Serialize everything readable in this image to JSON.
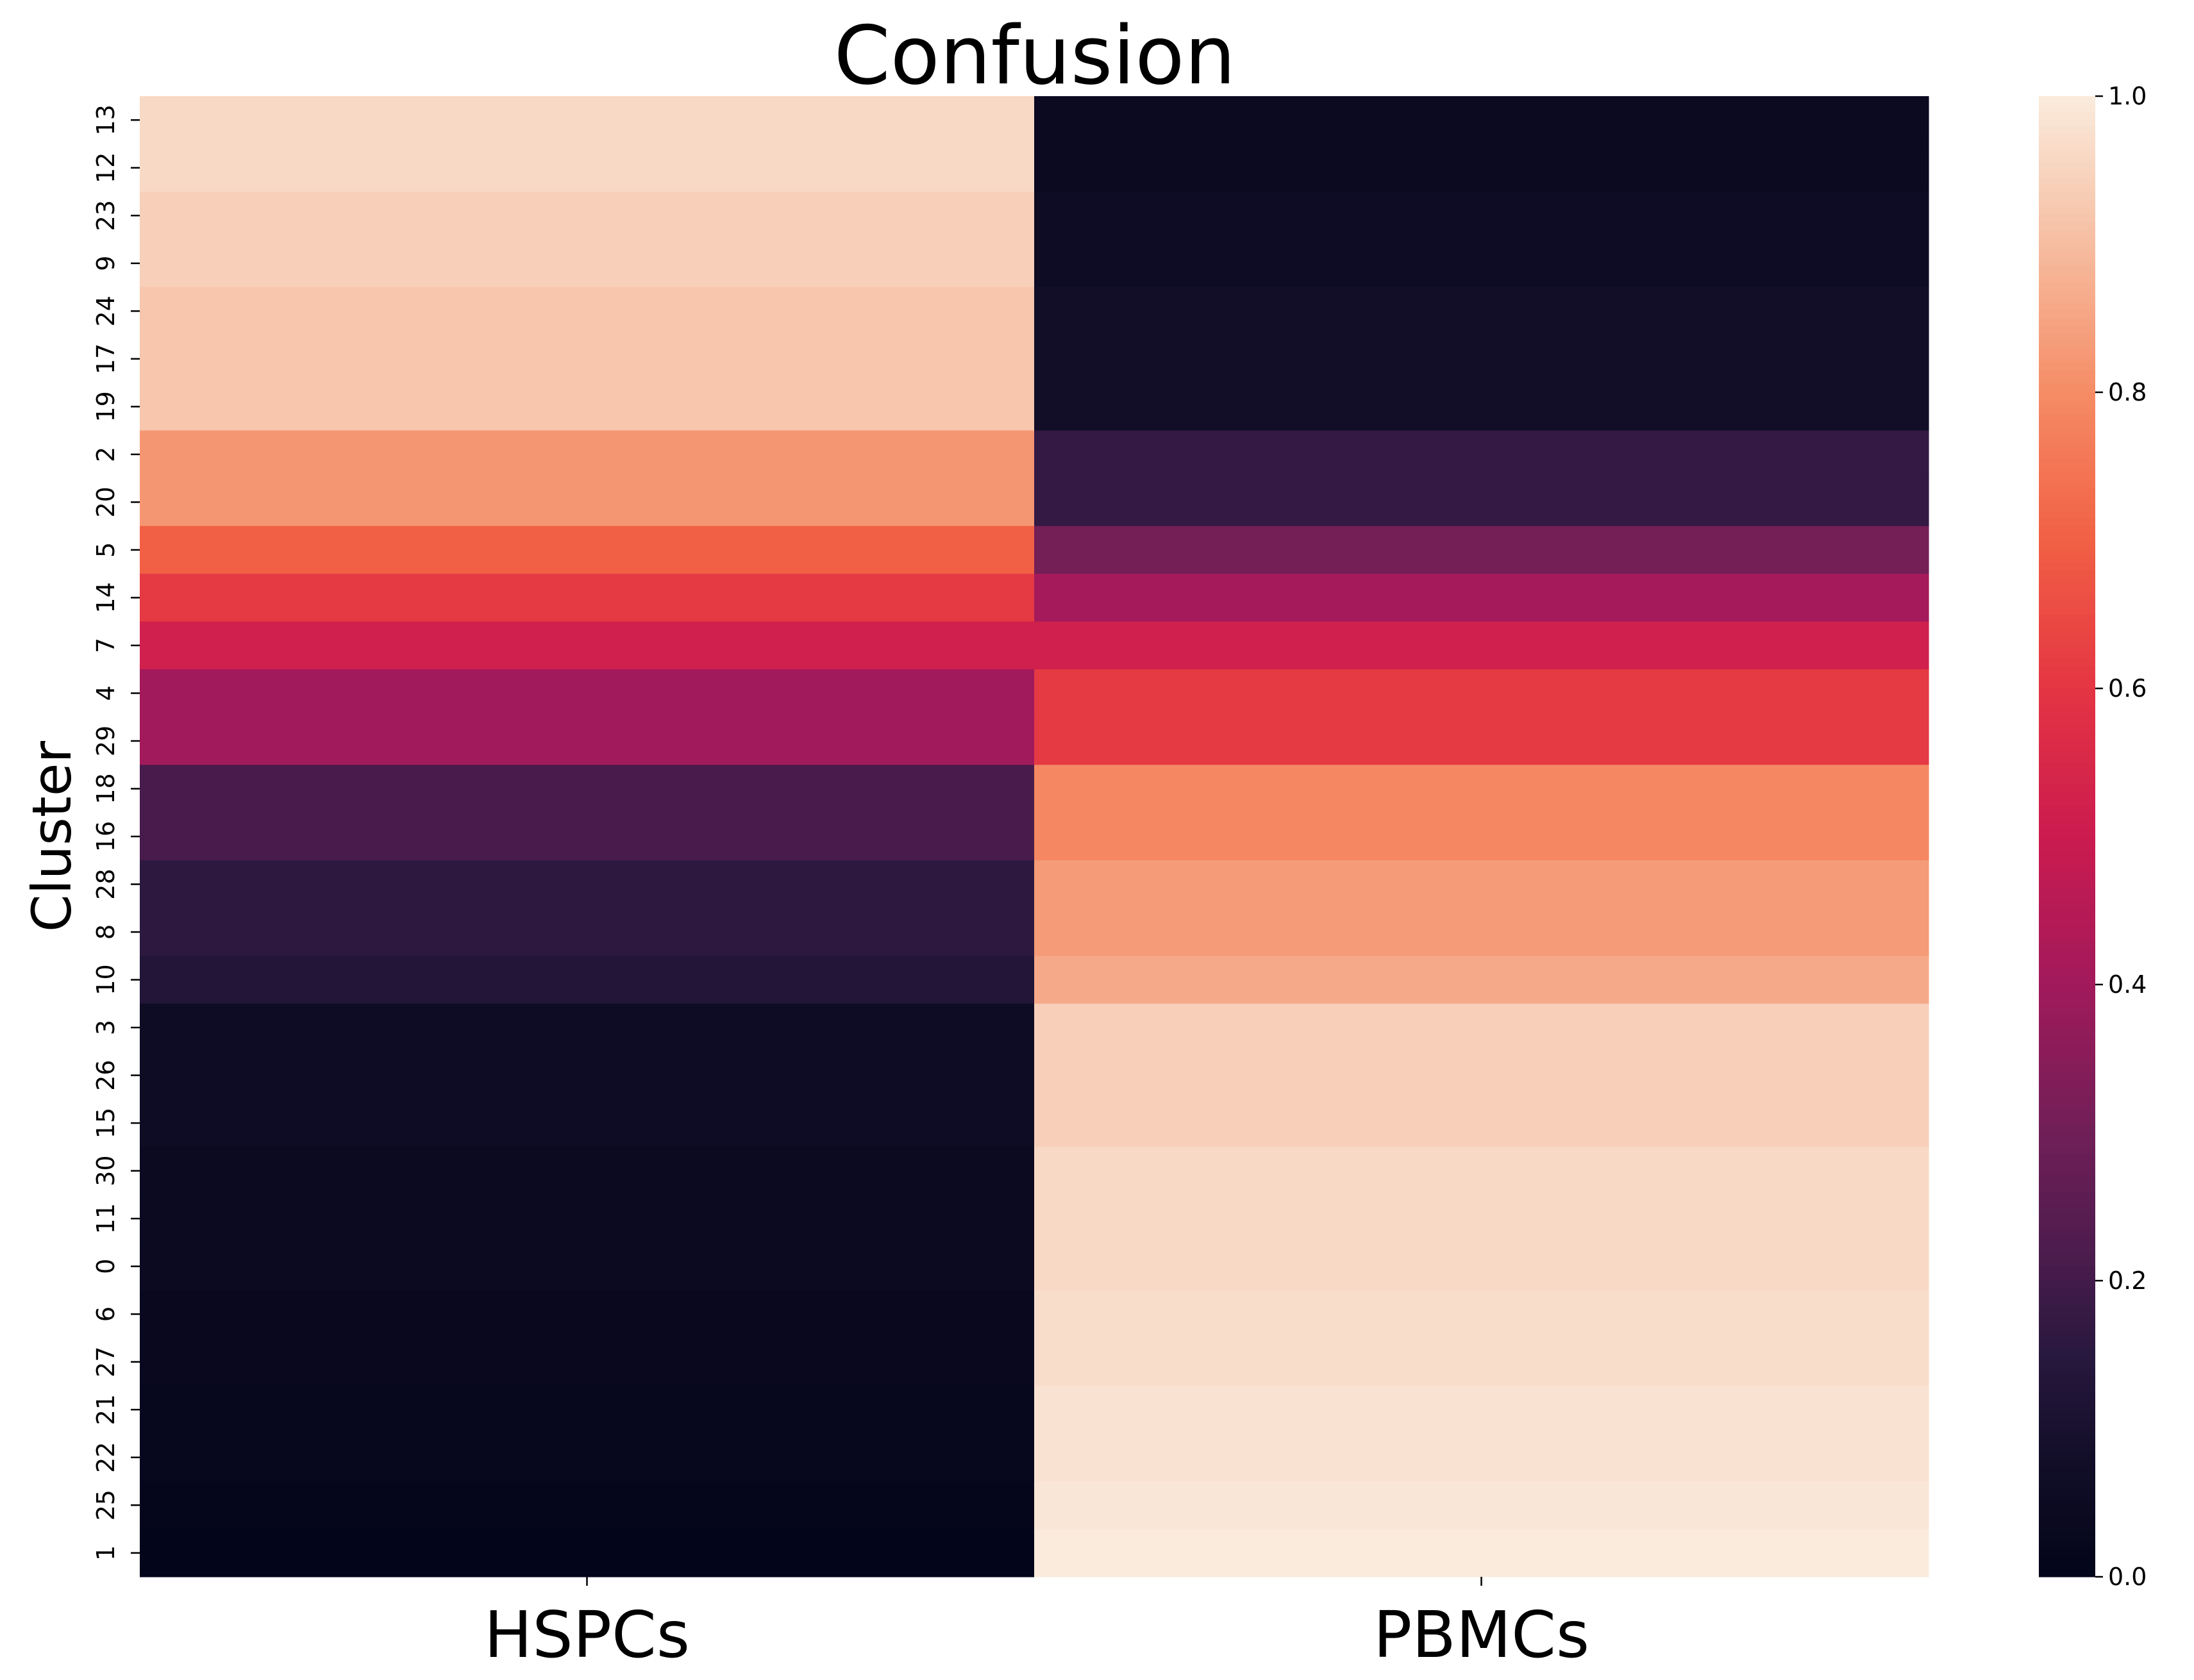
{
  "chart_data": {
    "type": "heatmap",
    "title": "Confusion",
    "xlabel": "",
    "ylabel": "Cluster",
    "columns": [
      "HSPCs",
      "PBMCs"
    ],
    "rows": [
      {
        "cluster": "13",
        "values": [
          0.96,
          0.04
        ]
      },
      {
        "cluster": "12",
        "values": [
          0.96,
          0.04
        ]
      },
      {
        "cluster": "23",
        "values": [
          0.94,
          0.06
        ]
      },
      {
        "cluster": "9",
        "values": [
          0.94,
          0.06
        ]
      },
      {
        "cluster": "24",
        "values": [
          0.92,
          0.08
        ]
      },
      {
        "cluster": "17",
        "values": [
          0.92,
          0.08
        ]
      },
      {
        "cluster": "19",
        "values": [
          0.92,
          0.08
        ]
      },
      {
        "cluster": "2",
        "values": [
          0.82,
          0.17
        ]
      },
      {
        "cluster": "20",
        "values": [
          0.82,
          0.17
        ]
      },
      {
        "cluster": "5",
        "values": [
          0.7,
          0.31
        ]
      },
      {
        "cluster": "14",
        "values": [
          0.61,
          0.41
        ]
      },
      {
        "cluster": "7",
        "values": [
          0.52,
          0.52
        ]
      },
      {
        "cluster": "4",
        "values": [
          0.4,
          0.61
        ]
      },
      {
        "cluster": "29",
        "values": [
          0.4,
          0.61
        ]
      },
      {
        "cluster": "18",
        "values": [
          0.21,
          0.79
        ]
      },
      {
        "cluster": "16",
        "values": [
          0.21,
          0.79
        ]
      },
      {
        "cluster": "28",
        "values": [
          0.16,
          0.83
        ]
      },
      {
        "cluster": "8",
        "values": [
          0.16,
          0.83
        ]
      },
      {
        "cluster": "10",
        "values": [
          0.13,
          0.86
        ]
      },
      {
        "cluster": "3",
        "values": [
          0.06,
          0.94
        ]
      },
      {
        "cluster": "26",
        "values": [
          0.06,
          0.94
        ]
      },
      {
        "cluster": "15",
        "values": [
          0.06,
          0.94
        ]
      },
      {
        "cluster": "30",
        "values": [
          0.04,
          0.96
        ]
      },
      {
        "cluster": "11",
        "values": [
          0.04,
          0.96
        ]
      },
      {
        "cluster": "0",
        "values": [
          0.04,
          0.96
        ]
      },
      {
        "cluster": "6",
        "values": [
          0.03,
          0.97
        ]
      },
      {
        "cluster": "27",
        "values": [
          0.03,
          0.97
        ]
      },
      {
        "cluster": "21",
        "values": [
          0.02,
          0.98
        ]
      },
      {
        "cluster": "22",
        "values": [
          0.02,
          0.98
        ]
      },
      {
        "cluster": "25",
        "values": [
          0.01,
          0.99
        ]
      },
      {
        "cluster": "1",
        "values": [
          0.0,
          1.0
        ]
      }
    ],
    "colorbar": {
      "range": [
        0.0,
        1.0
      ],
      "ticks": [
        "0.0",
        "0.2",
        "0.4",
        "0.6",
        "0.8",
        "1.0"
      ],
      "colormap": "rocket"
    },
    "grid": false,
    "legend": "colorbar-right"
  }
}
